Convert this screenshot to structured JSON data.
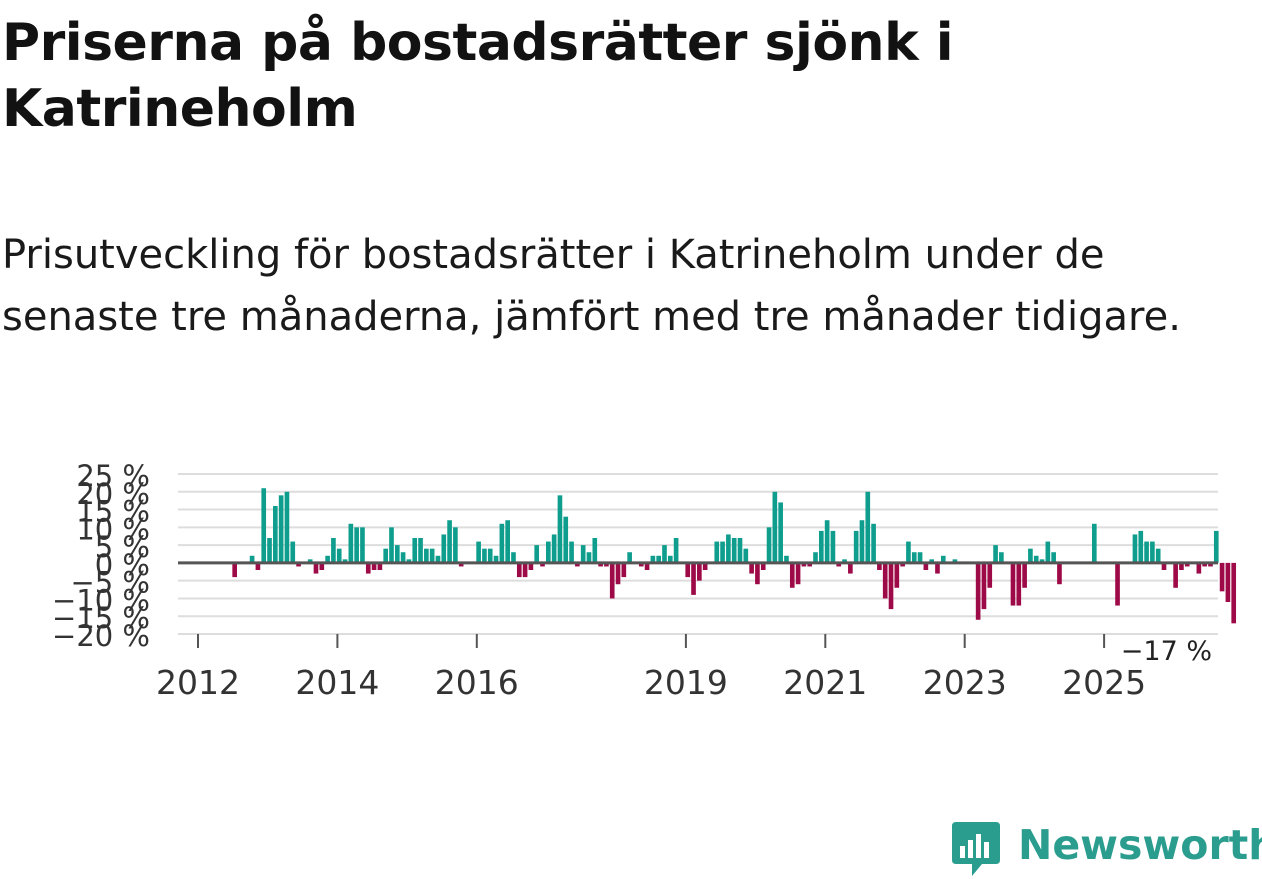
{
  "title": "Priserna på bostadsrätter sjönk i Katrineholm",
  "subtitle": "Prisutveckling för bostadsrätter i Katrineholm under de senaste tre månaderna, jämfört med tre månader tidigare.",
  "brand": {
    "name": "Newsworthy",
    "color": "#2a9d8f",
    "icon": "newsworthy-logo-icon"
  },
  "colors": {
    "positive": "#0f9e8e",
    "negative": "#9e0a47",
    "grid": "#dddddd",
    "zero_line": "#555555",
    "text": "#333333"
  },
  "chart_data": {
    "type": "bar",
    "title": "Priserna på bostadsrätter sjönk i Katrineholm",
    "xlabel": "",
    "ylabel": "",
    "ylim": [
      -20,
      25
    ],
    "yticks": [
      25,
      20,
      15,
      10,
      5,
      0,
      -5,
      -10,
      -15,
      -20
    ],
    "ytick_labels": [
      "25 %",
      "20 %",
      "15 %",
      "10 %",
      "5 %",
      "0 %",
      "−5 %",
      "−10 %",
      "−15 %",
      "−20 %"
    ],
    "xticks": [
      2012,
      2014,
      2016,
      2019,
      2021,
      2023,
      2025
    ],
    "xtick_labels": [
      "2012",
      "2014",
      "2016",
      "2019",
      "2021",
      "2023",
      "2025"
    ],
    "x_start_year": 2012,
    "x_end_year": 2025.5,
    "grid": true,
    "series": [
      {
        "name": "Prisutveckling",
        "start": "2012-01",
        "step": "month",
        "values": [
          0,
          0,
          0,
          0,
          0,
          0,
          -4,
          0,
          0,
          2,
          -2,
          21,
          7,
          16,
          19,
          20,
          6,
          -1,
          0,
          1,
          -3,
          -2,
          2,
          7,
          4,
          1,
          11,
          10,
          10,
          -3,
          -2,
          -2,
          4,
          10,
          5,
          3,
          1,
          7,
          7,
          4,
          4,
          2,
          8,
          12,
          10,
          -1,
          0,
          0,
          6,
          4,
          4,
          2,
          11,
          12,
          3,
          -4,
          -4,
          -2,
          5,
          -1,
          6,
          8,
          19,
          13,
          6,
          -1,
          5,
          3,
          7,
          -1,
          -1,
          -10,
          -6,
          -4,
          3,
          0,
          -1,
          -2,
          2,
          2,
          5,
          2,
          7,
          0,
          -4,
          -9,
          -5,
          -2,
          0,
          6,
          6,
          8,
          7,
          7,
          4,
          -3,
          -6,
          -2,
          10,
          20,
          17,
          2,
          -7,
          -6,
          -1,
          -1,
          3,
          9,
          12,
          9,
          -1,
          1,
          -3,
          9,
          12,
          20,
          11,
          -2,
          -10,
          -13,
          -7,
          -1,
          6,
          3,
          3,
          -2,
          1,
          -3,
          2,
          0,
          1,
          0,
          0,
          0,
          -16,
          -13,
          -7,
          5,
          3,
          0,
          -12,
          -12,
          -7,
          4,
          2,
          1,
          6,
          3,
          -6,
          0,
          0,
          0,
          0,
          0,
          11,
          0,
          0,
          0,
          -12,
          0,
          0,
          8,
          9,
          6,
          6,
          4,
          -2,
          0,
          -7,
          -2,
          -1,
          0,
          -3,
          -1,
          -1,
          9,
          -8,
          -11,
          -17
        ]
      }
    ],
    "last_value_label": "−17 %"
  }
}
